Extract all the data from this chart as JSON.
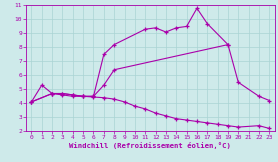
{
  "bg_color": "#ceeaea",
  "line_color": "#aa00aa",
  "xlabel": "Windchill (Refroidissement éolien,°C)",
  "xlim": [
    -0.5,
    23.5
  ],
  "ylim": [
    2,
    11
  ],
  "xticks": [
    0,
    1,
    2,
    3,
    4,
    5,
    6,
    7,
    8,
    9,
    10,
    11,
    12,
    13,
    14,
    15,
    16,
    17,
    18,
    19,
    20,
    21,
    22,
    23
  ],
  "yticks": [
    2,
    3,
    4,
    5,
    6,
    7,
    8,
    9,
    10,
    11
  ],
  "grid_color": "#aad4d4",
  "top_x": [
    0,
    1,
    2,
    3,
    4,
    5,
    6,
    7,
    8,
    11,
    12,
    13,
    14,
    15,
    16,
    17,
    19
  ],
  "top_y": [
    4.1,
    5.3,
    4.7,
    4.7,
    4.6,
    4.5,
    4.5,
    7.5,
    8.2,
    9.3,
    9.4,
    9.1,
    9.4,
    9.5,
    10.8,
    9.7,
    8.2
  ],
  "mid_x": [
    0,
    2,
    3,
    4,
    5,
    6,
    7,
    8,
    19,
    20,
    22,
    23
  ],
  "mid_y": [
    4.1,
    4.7,
    4.7,
    4.6,
    4.5,
    4.5,
    5.3,
    6.4,
    8.2,
    5.5,
    4.5,
    4.2
  ],
  "bot_x": [
    0,
    2,
    3,
    4,
    5,
    6,
    7,
    8,
    9,
    10,
    11,
    12,
    13,
    14,
    15,
    16,
    17,
    18,
    19,
    20,
    22,
    23
  ],
  "bot_y": [
    4.1,
    4.7,
    4.6,
    4.5,
    4.5,
    4.45,
    4.4,
    4.3,
    4.1,
    3.8,
    3.6,
    3.3,
    3.1,
    2.9,
    2.8,
    2.7,
    2.6,
    2.5,
    2.4,
    2.3,
    2.4,
    2.2
  ]
}
